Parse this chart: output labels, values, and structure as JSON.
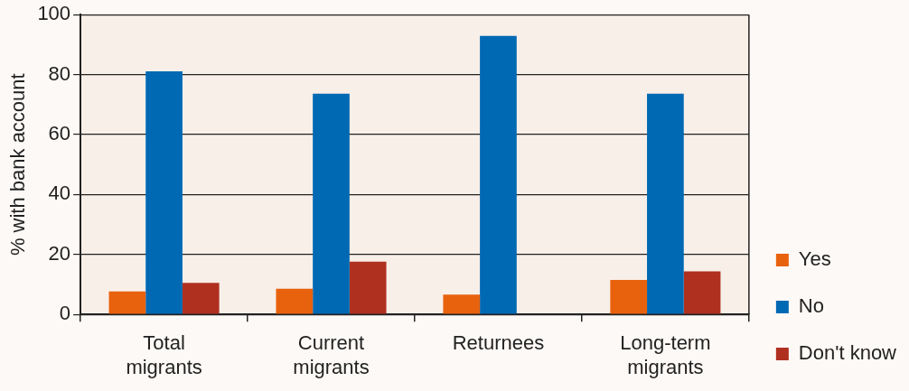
{
  "chart_data": {
    "type": "bar",
    "ylabel": "% with bank account",
    "categories": [
      "Total migrants",
      "Current migrants",
      "Returnees",
      "Long-term migrants"
    ],
    "series": [
      {
        "name": "Yes",
        "color": "#e8620e",
        "values": [
          7.7,
          8.6,
          6.6,
          11.5
        ]
      },
      {
        "name": "No",
        "color": "#0069b4",
        "values": [
          81.1,
          73.6,
          92.9,
          73.6
        ]
      },
      {
        "name": "Don't know",
        "color": "#b03020",
        "values": [
          10.5,
          17.6,
          null,
          14.4
        ]
      }
    ],
    "ylim": [
      0,
      100
    ],
    "yticks": [
      0,
      20,
      40,
      60,
      80,
      100
    ],
    "grid": "y",
    "legend": "right"
  }
}
